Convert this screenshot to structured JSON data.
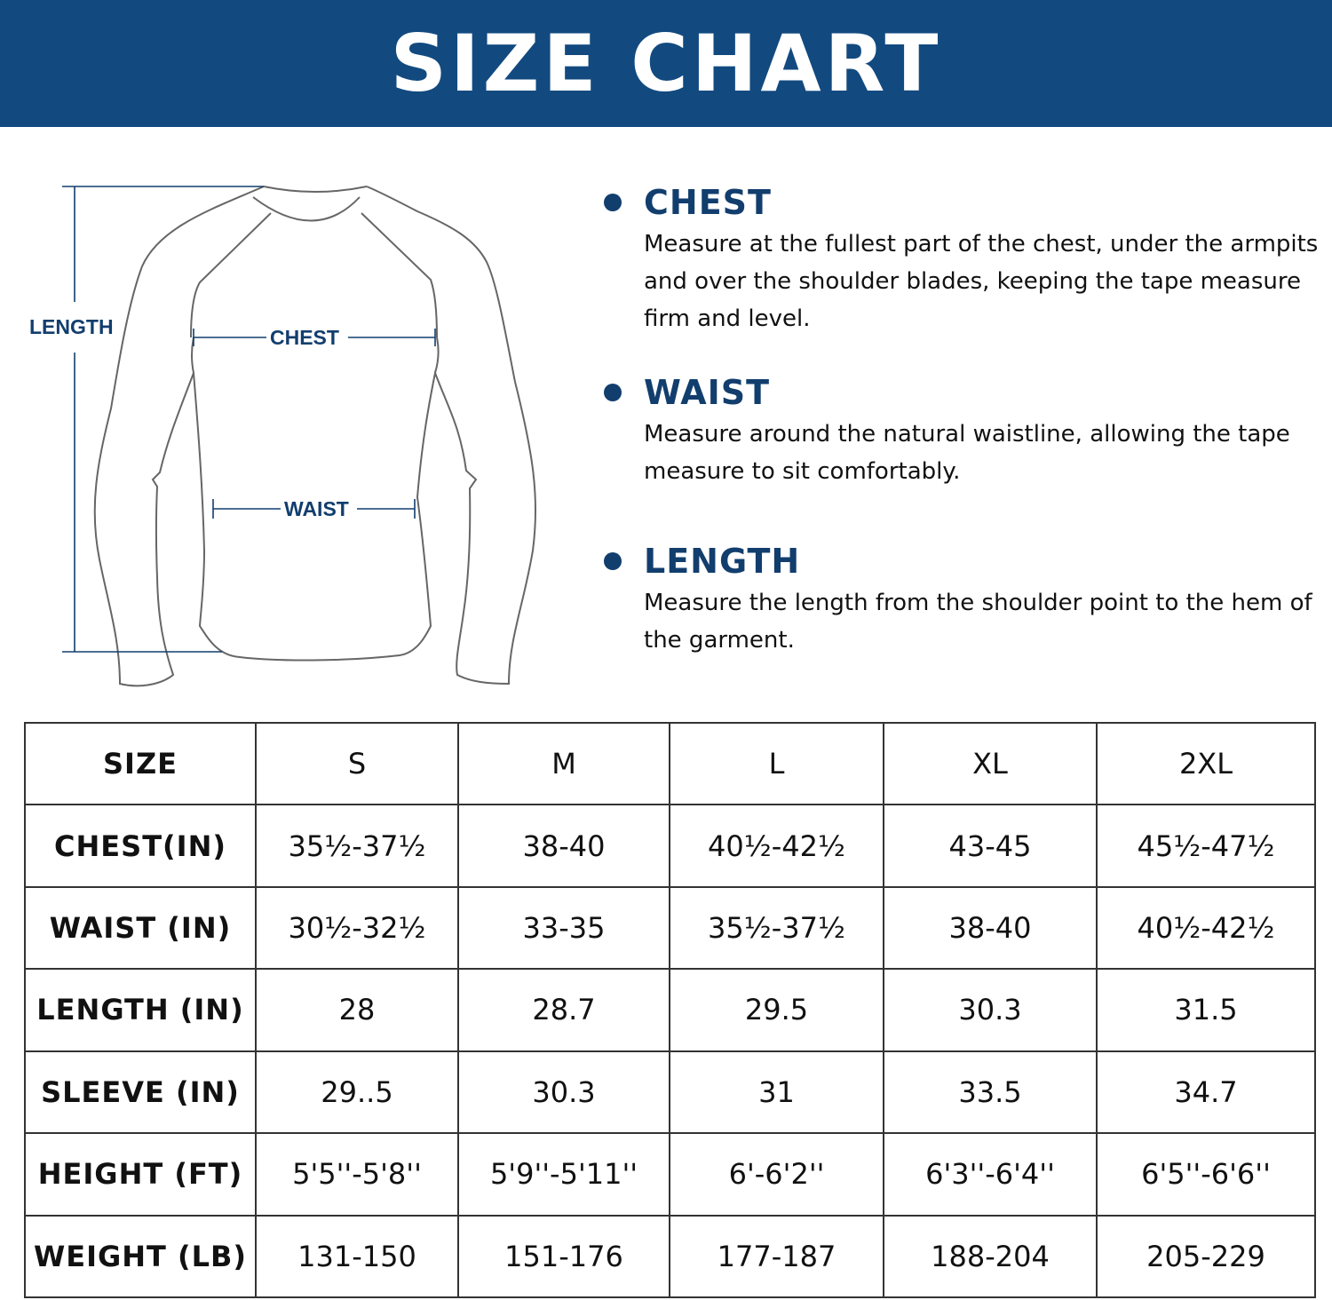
{
  "banner": {
    "title": "SIZE CHART",
    "color": "#124a80"
  },
  "diagram": {
    "length_label": "LENGTH",
    "chest_label": "CHEST",
    "waist_label": "WAIST",
    "accent": "#123e6e"
  },
  "measurements": [
    {
      "title": "CHEST",
      "text": "Measure at the fullest part of the chest, under the armpits and over the shoulder blades, keeping the tape measure firm and level."
    },
    {
      "title": "WAIST",
      "text": "Measure around the natural waistline, allowing the tape measure to sit comfortably."
    },
    {
      "title": "LENGTH",
      "text": "Measure the length from the shoulder point to the hem of the garment."
    }
  ],
  "table": {
    "header": [
      "SIZE",
      "S",
      "M",
      "L",
      "XL",
      "2XL"
    ],
    "rows": [
      [
        "CHEST(IN)",
        "35½-37½",
        "38-40",
        "40½-42½",
        "43-45",
        "45½-47½"
      ],
      [
        "WAIST (IN)",
        "30½-32½",
        "33-35",
        "35½-37½",
        "38-40",
        "40½-42½"
      ],
      [
        "LENGTH (IN)",
        "28",
        "28.7",
        "29.5",
        "30.3",
        "31.5"
      ],
      [
        "SLEEVE (IN)",
        "29..5",
        "30.3",
        "31",
        "33.5",
        "34.7"
      ],
      [
        "HEIGHT (FT)",
        "5'5''-5'8''",
        "5'9''-5'11''",
        "6'-6'2''",
        "6'3''-6'4''",
        "6'5''-6'6''"
      ],
      [
        "WEIGHT (LB)",
        "131-150",
        "151-176",
        "177-187",
        "188-204",
        "205-229"
      ]
    ]
  }
}
